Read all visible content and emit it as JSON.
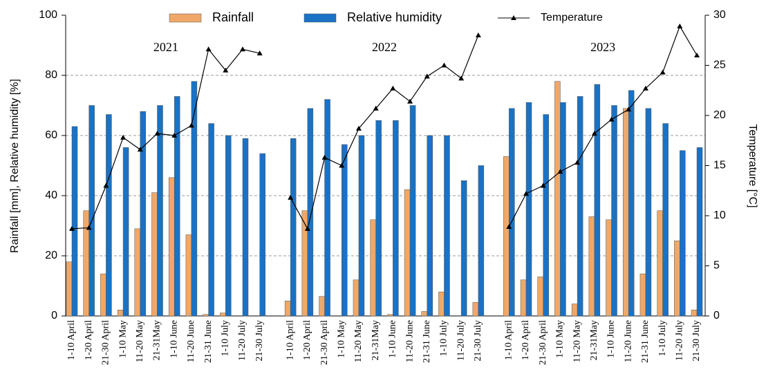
{
  "chart_data": {
    "type": "bar-line",
    "categories": [
      "1-10 April",
      "1-20 April",
      "21-30 April",
      "1-10 May",
      "11-20 May",
      "21-31May",
      "1-10 June",
      "11-20 June",
      "21-31 June",
      "1-10 July",
      "11-20 July",
      "21-30 July",
      "1-10 April",
      "1-20 April",
      "21-30 April",
      "1-10 May",
      "11-20 May",
      "21-31May",
      "1-10 June",
      "11-20 June",
      "21-31 June",
      "1-10 July",
      "11-20 July",
      "21-30 July",
      "1-10 April",
      "1-20 April",
      "21-30 April",
      "1-10 May",
      "11-20 May",
      "21-31May",
      "1-10 June",
      "11-20 June",
      "21-31 June",
      "1-10 July",
      "11-20 July",
      "21-30 July"
    ],
    "annotations": [
      "2021",
      "2022",
      "2023"
    ],
    "y_label": "Rainfall [mm], Relative humidity [%]",
    "y2_label": "Temperature [°C]",
    "series": [
      {
        "name": "Rainfall",
        "type": "bar",
        "color": "#f0a868",
        "values": [
          18,
          35,
          14,
          2,
          29,
          41,
          46,
          27,
          0.5,
          1,
          0,
          0,
          5,
          35,
          6.5,
          0,
          12,
          32,
          0.5,
          42,
          1.5,
          8,
          0,
          4.5,
          53,
          12,
          13,
          78,
          4,
          33,
          32,
          69,
          14,
          35,
          25,
          2
        ]
      },
      {
        "name": "Relative humidity",
        "type": "bar",
        "color": "#1a72c4",
        "values": [
          63,
          70,
          67,
          56,
          68,
          70,
          73,
          78,
          64,
          60,
          59,
          54,
          59,
          69,
          72,
          57,
          60,
          65,
          65,
          70,
          60,
          60,
          45,
          50,
          69,
          71,
          67,
          71,
          73,
          77,
          70,
          75,
          69,
          64,
          55,
          56
        ]
      },
      {
        "name": "Temperature",
        "type": "line",
        "axis": "y2",
        "color": "#000000",
        "values": [
          8.7,
          8.8,
          13,
          17.8,
          16.6,
          18.2,
          18,
          19,
          26.6,
          24.5,
          26.6,
          26.2,
          11.8,
          8.7,
          15.8,
          15,
          18.7,
          20.7,
          22.7,
          21.4,
          23.9,
          25,
          23.7,
          28,
          8.9,
          12.2,
          13,
          14.4,
          15.3,
          18.2,
          19.6,
          20.6,
          22.7,
          24.3,
          28.9,
          26
        ]
      }
    ],
    "ylim": [
      0,
      100
    ],
    "yticks": [
      0,
      20,
      40,
      60,
      80,
      100
    ],
    "y2lim": [
      0,
      30
    ],
    "y2ticks": [
      0,
      5,
      10,
      15,
      20,
      25,
      30
    ],
    "grid": true
  }
}
